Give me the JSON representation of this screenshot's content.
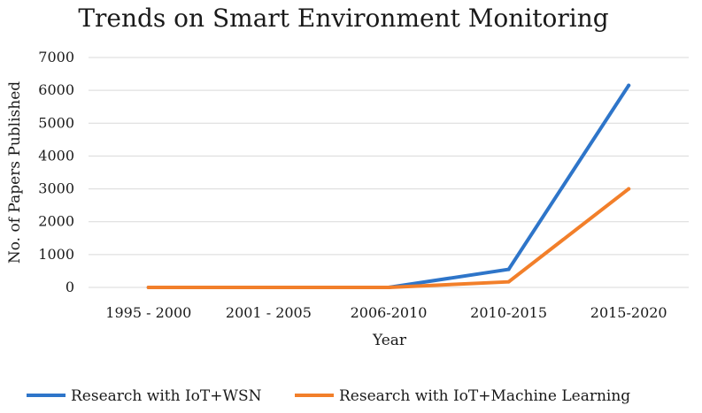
{
  "chart_data": {
    "type": "line",
    "title": "Trends on Smart Environment Monitoring",
    "xlabel": "Year",
    "ylabel": "No. of Papers Published",
    "categories": [
      "1995 - 2000",
      "2001 - 2005",
      "2006-2010",
      "2010-2015",
      "2015-2020"
    ],
    "ylim": [
      0,
      7000
    ],
    "yticks": [
      0,
      1000,
      2000,
      3000,
      4000,
      5000,
      6000,
      7000
    ],
    "grid": true,
    "legend_position": "bottom",
    "series": [
      {
        "name": "Research with IoT+WSN",
        "color": "#2E75C9",
        "values": [
          0,
          0,
          0,
          550,
          6150
        ]
      },
      {
        "name": "Research with IoT+Machine Learning",
        "color": "#F27F2A",
        "values": [
          0,
          0,
          0,
          170,
          3000
        ]
      }
    ]
  }
}
